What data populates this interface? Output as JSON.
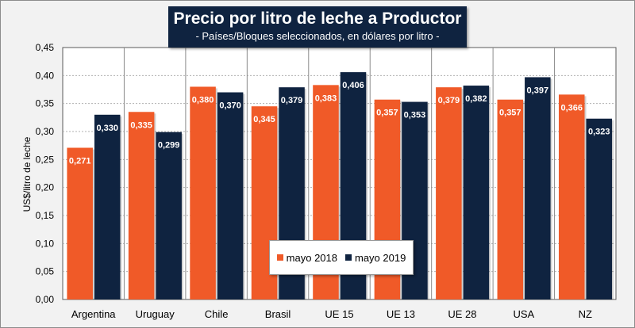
{
  "chart_data": {
    "type": "bar",
    "title": "Precio por litro de leche a Productor",
    "subtitle": "- Países/Bloques seleccionados, en dólares por litro -",
    "xlabel": "",
    "ylabel": "US$/litro de leche",
    "ylim": [
      0,
      0.45
    ],
    "yticks": [
      0,
      0.05,
      0.1,
      0.15,
      0.2,
      0.25,
      0.3,
      0.35,
      0.4,
      0.45
    ],
    "ytick_labels": [
      "0,00",
      "0,05",
      "0,10",
      "0,15",
      "0,20",
      "0,25",
      "0,30",
      "0,35",
      "0,40",
      "0,45"
    ],
    "grid": true,
    "legend_position": "bottom-center-inside",
    "categories": [
      "Argentina",
      "Uruguay",
      "Chile",
      "Brasil",
      "UE 15",
      "UE 13",
      "UE 28",
      "USA",
      "NZ"
    ],
    "series": [
      {
        "name": "mayo 2018",
        "color": "#f05a28",
        "values": [
          0.271,
          0.335,
          0.38,
          0.345,
          0.383,
          0.357,
          0.379,
          0.357,
          0.366
        ],
        "labels": [
          "0,271",
          "0,335",
          "0,380",
          "0,345",
          "0,383",
          "0,357",
          "0,379",
          "0,357",
          "0,366"
        ]
      },
      {
        "name": "mayo 2019",
        "color": "#0f2340",
        "values": [
          0.33,
          0.299,
          0.37,
          0.379,
          0.406,
          0.353,
          0.382,
          0.397,
          0.323
        ],
        "labels": [
          "0,330",
          "0,299",
          "0,370",
          "0,379",
          "0,406",
          "0,353",
          "0,382",
          "0,397",
          "0,323"
        ]
      }
    ]
  }
}
